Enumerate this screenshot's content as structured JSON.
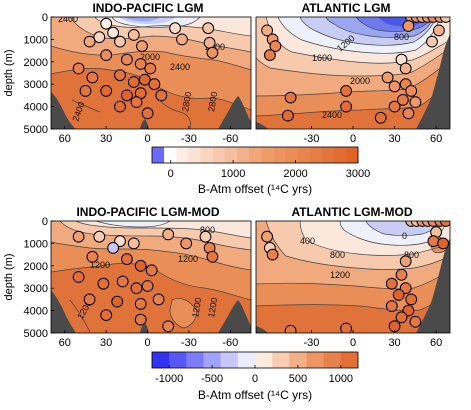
{
  "chart_data": [
    {
      "type": "heatmap",
      "title": "INDO-PACIFIC  LGM",
      "ylabel": "depth (m)",
      "y_ticks": [
        "0",
        "1000",
        "2000",
        "3000",
        "4000",
        "5000"
      ],
      "x_ticks": [
        "60",
        "30",
        "0",
        "-30",
        "-60"
      ],
      "contour_labels": [
        "2000",
        "2000",
        "2400",
        "2400",
        "2400",
        "2800",
        "2800"
      ],
      "points": [
        {
          "lat": 35,
          "depth": 900,
          "v": 600
        },
        {
          "lat": 42,
          "depth": 1100,
          "v": 1400
        },
        {
          "lat": 20,
          "depth": 1100,
          "v": 800
        },
        {
          "lat": 10,
          "depth": 800,
          "v": 1000
        },
        {
          "lat": 4,
          "depth": 1300,
          "v": 1500
        },
        {
          "lat": -20,
          "depth": 500,
          "v": 500
        },
        {
          "lat": -25,
          "depth": 1000,
          "v": 1300
        },
        {
          "lat": -44,
          "depth": 500,
          "v": 900
        },
        {
          "lat": -45,
          "depth": 1150,
          "v": 1200
        },
        {
          "lat": -47,
          "depth": 1600,
          "v": 1800
        },
        {
          "lat": 30,
          "depth": 1700,
          "v": 2000
        },
        {
          "lat": 15,
          "depth": 1900,
          "v": 2100
        },
        {
          "lat": 5,
          "depth": 2100,
          "v": 2300
        },
        {
          "lat": -2,
          "depth": 2300,
          "v": 2400
        },
        {
          "lat": 50,
          "depth": 2300,
          "v": 2300
        },
        {
          "lat": 40,
          "depth": 2700,
          "v": 2500
        },
        {
          "lat": 20,
          "depth": 2600,
          "v": 2600
        },
        {
          "lat": 10,
          "depth": 2900,
          "v": 2800
        },
        {
          "lat": 2,
          "depth": 2800,
          "v": 2900
        },
        {
          "lat": -5,
          "depth": 3000,
          "v": 2700
        },
        {
          "lat": 30,
          "depth": 3300,
          "v": 2900
        },
        {
          "lat": 15,
          "depth": 3500,
          "v": 3000
        },
        {
          "lat": 5,
          "depth": 3400,
          "v": 2800
        },
        {
          "lat": 8,
          "depth": 3800,
          "v": 2600
        },
        {
          "lat": -10,
          "depth": 3500,
          "v": 2700
        },
        {
          "lat": 45,
          "depth": 3300,
          "v": 2600
        },
        {
          "lat": 20,
          "depth": 4000,
          "v": 2800
        },
        {
          "lat": 0,
          "depth": 4300,
          "v": 2700
        },
        {
          "lat": 25,
          "depth": 700,
          "v": 300
        },
        {
          "lat": 30,
          "depth": 300,
          "v": 200
        }
      ]
    },
    {
      "type": "heatmap",
      "title": "ATLANTIC LGM",
      "x_ticks": [
        "-30",
        "0",
        "30",
        "60"
      ],
      "contour_labels": [
        "800",
        "1200",
        "1600",
        "2000",
        "2400"
      ],
      "points": [
        {
          "lat": 42,
          "depth": 0,
          "v": 1500
        },
        {
          "lat": 46,
          "depth": 0,
          "v": 1800
        },
        {
          "lat": 50,
          "depth": 0,
          "v": 1400
        },
        {
          "lat": 54,
          "depth": 0,
          "v": 1600
        },
        {
          "lat": 58,
          "depth": 0,
          "v": 2000
        },
        {
          "lat": 63,
          "depth": 0,
          "v": 1700
        },
        {
          "lat": 67,
          "depth": 0,
          "v": 900
        },
        {
          "lat": 40,
          "depth": 400,
          "v": 1700
        },
        {
          "lat": 62,
          "depth": 600,
          "v": 1200
        },
        {
          "lat": 57,
          "depth": 1100,
          "v": 800
        },
        {
          "lat": -62,
          "depth": 600,
          "v": 1300
        },
        {
          "lat": -58,
          "depth": 1000,
          "v": 1700
        },
        {
          "lat": -56,
          "depth": 1300,
          "v": 2100
        },
        {
          "lat": -60,
          "depth": 1700,
          "v": 2400
        },
        {
          "lat": 35,
          "depth": 1900,
          "v": 400
        },
        {
          "lat": 38,
          "depth": 2300,
          "v": 1200
        },
        {
          "lat": 25,
          "depth": 2700,
          "v": 1600
        },
        {
          "lat": 30,
          "depth": 3100,
          "v": 1800
        },
        {
          "lat": 38,
          "depth": 3000,
          "v": 2200
        },
        {
          "lat": 42,
          "depth": 3300,
          "v": 2000
        },
        {
          "lat": 36,
          "depth": 3700,
          "v": 2400
        },
        {
          "lat": 30,
          "depth": 4000,
          "v": 2500
        },
        {
          "lat": 45,
          "depth": 3800,
          "v": 1700
        },
        {
          "lat": 40,
          "depth": 4300,
          "v": 2200
        },
        {
          "lat": -5,
          "depth": 3300,
          "v": 2700
        },
        {
          "lat": -5,
          "depth": 4000,
          "v": 2800
        },
        {
          "lat": -45,
          "depth": 3600,
          "v": 2600
        },
        {
          "lat": -47,
          "depth": 4400,
          "v": 2800
        },
        {
          "lat": 20,
          "depth": 4500,
          "v": 2700
        }
      ],
      "colorbar": {
        "ticks": [
          "0",
          "1000",
          "2000",
          "3000"
        ],
        "vmin": -300,
        "vmax": 3000,
        "step": 200,
        "label": "B-Atm offset (¹⁴C yrs)"
      }
    },
    {
      "type": "heatmap",
      "title": "INDO-PACIFIC  LGM-MOD",
      "ylabel": "depth (m)",
      "y_ticks": [
        "0",
        "1000",
        "2000",
        "3000",
        "4000",
        "5000"
      ],
      "x_ticks": [
        "60",
        "30",
        "0",
        "-30",
        "-60"
      ],
      "contour_labels": [
        "800",
        "1200",
        "1200",
        "1200",
        "1200",
        "1200"
      ],
      "points": [
        {
          "lat": 35,
          "depth": 700,
          "v": 300
        },
        {
          "lat": 20,
          "depth": 900,
          "v": 200
        },
        {
          "lat": 25,
          "depth": 1200,
          "v": -300
        },
        {
          "lat": 10,
          "depth": 1000,
          "v": 400
        },
        {
          "lat": -15,
          "depth": 600,
          "v": 500
        },
        {
          "lat": -28,
          "depth": 1000,
          "v": 700
        },
        {
          "lat": -42,
          "depth": 700,
          "v": 300
        },
        {
          "lat": -45,
          "depth": 1200,
          "v": 900
        },
        {
          "lat": -47,
          "depth": 1600,
          "v": 1000
        },
        {
          "lat": 50,
          "depth": 700,
          "v": 600
        },
        {
          "lat": 40,
          "depth": 1600,
          "v": 900
        },
        {
          "lat": 15,
          "depth": 1700,
          "v": 1100
        },
        {
          "lat": 5,
          "depth": 2000,
          "v": 1200
        },
        {
          "lat": -3,
          "depth": 2200,
          "v": 1000
        },
        {
          "lat": 50,
          "depth": 2500,
          "v": 1100
        },
        {
          "lat": 32,
          "depth": 2800,
          "v": 1100
        },
        {
          "lat": 18,
          "depth": 2700,
          "v": 1000
        },
        {
          "lat": 8,
          "depth": 3000,
          "v": 1100
        },
        {
          "lat": 0,
          "depth": 2900,
          "v": 1000
        },
        {
          "lat": 42,
          "depth": 3500,
          "v": 1000
        },
        {
          "lat": 22,
          "depth": 3600,
          "v": 1200
        },
        {
          "lat": 5,
          "depth": 3700,
          "v": 1000
        },
        {
          "lat": -8,
          "depth": 3500,
          "v": 900
        },
        {
          "lat": 30,
          "depth": 4200,
          "v": 1100
        },
        {
          "lat": 5,
          "depth": 4400,
          "v": 1000
        },
        {
          "lat": -15,
          "depth": 4700,
          "v": 900
        }
      ]
    },
    {
      "type": "heatmap",
      "title": "ATLANTIC LGM-MOD",
      "x_ticks": [
        "-30",
        "0",
        "30",
        "60"
      ],
      "contour_labels": [
        "400",
        "800",
        "1200",
        "800",
        "0"
      ],
      "points": [
        {
          "lat": 42,
          "depth": 0,
          "v": 500
        },
        {
          "lat": 46,
          "depth": 0,
          "v": 400
        },
        {
          "lat": 50,
          "depth": 0,
          "v": 700
        },
        {
          "lat": 54,
          "depth": 0,
          "v": 600
        },
        {
          "lat": 58,
          "depth": 0,
          "v": 800
        },
        {
          "lat": 63,
          "depth": 0,
          "v": 900
        },
        {
          "lat": 67,
          "depth": 0,
          "v": 1100
        },
        {
          "lat": 60,
          "depth": 500,
          "v": 400
        },
        {
          "lat": 58,
          "depth": 900,
          "v": 1000
        },
        {
          "lat": 65,
          "depth": 1000,
          "v": 1200
        },
        {
          "lat": -62,
          "depth": 700,
          "v": 600
        },
        {
          "lat": -60,
          "depth": 1200,
          "v": 300
        },
        {
          "lat": -58,
          "depth": 1500,
          "v": 900
        },
        {
          "lat": 38,
          "depth": 1800,
          "v": 600
        },
        {
          "lat": 35,
          "depth": 2400,
          "v": 900
        },
        {
          "lat": 28,
          "depth": 2800,
          "v": 1100
        },
        {
          "lat": 38,
          "depth": 3000,
          "v": 1000
        },
        {
          "lat": 33,
          "depth": 3300,
          "v": 1200
        },
        {
          "lat": 42,
          "depth": 3500,
          "v": 1100
        },
        {
          "lat": 28,
          "depth": 3800,
          "v": 1000
        },
        {
          "lat": 40,
          "depth": 4000,
          "v": 1200
        },
        {
          "lat": 35,
          "depth": 4300,
          "v": 1100
        },
        {
          "lat": 45,
          "depth": 4500,
          "v": 1000
        },
        {
          "lat": 30,
          "depth": 4700,
          "v": 1200
        },
        {
          "lat": -5,
          "depth": 4800,
          "v": 1100
        },
        {
          "lat": -45,
          "depth": 4900,
          "v": 1000
        }
      ],
      "colorbar": {
        "ticks": [
          "-1000",
          "-500",
          "0",
          "500",
          "1000"
        ],
        "vmin": -1200,
        "vmax": 1200,
        "step": 200,
        "label": "B-Atm offset (¹⁴C yrs)"
      }
    }
  ]
}
